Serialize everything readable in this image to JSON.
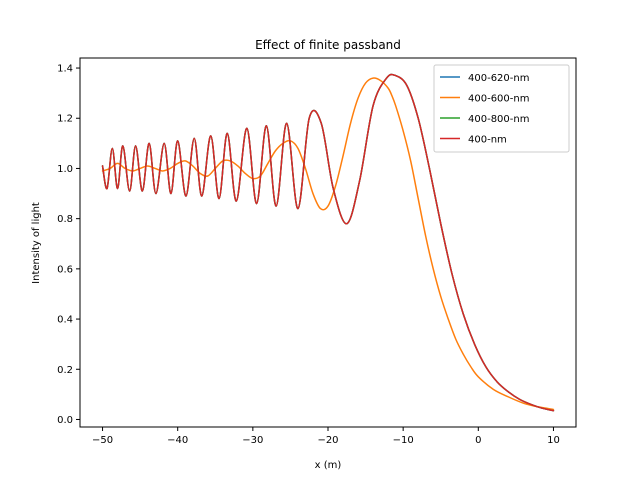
{
  "chart_data": {
    "type": "line",
    "title": "Effect of finite passband",
    "xlabel": "x (m)",
    "ylabel": "Intensity of light",
    "xlim": [
      -53,
      13
    ],
    "ylim": [
      -0.03,
      1.44
    ],
    "x_ticks": [
      -50,
      -40,
      -30,
      -20,
      -10,
      0,
      10
    ],
    "y_ticks": [
      0.0,
      0.2,
      0.4,
      0.6,
      0.8,
      1.0,
      1.2,
      1.4
    ],
    "x_tick_labels": [
      "−50",
      "−40",
      "−30",
      "−20",
      "−10",
      "0",
      "10"
    ],
    "y_tick_labels": [
      "0.0",
      "0.2",
      "0.4",
      "0.6",
      "0.8",
      "1.0",
      "1.2",
      "1.4"
    ],
    "grid": false,
    "legend_position": "upper right",
    "series": [
      {
        "name": "400-620-nm",
        "color": "#1f77b4",
        "x": [
          -50,
          -49.4,
          -48.7,
          -48.0,
          -47.3,
          -46.4,
          -45.6,
          -44.7,
          -43.8,
          -42.9,
          -41.8,
          -40.9,
          -40.0,
          -38.9,
          -37.8,
          -36.8,
          -35.6,
          -34.5,
          -33.4,
          -32.2,
          -30.8,
          -29.5,
          -28.2,
          -26.9,
          -25.5,
          -24.0,
          -22.5,
          -20.9,
          -19.3,
          -17.5,
          -15.8,
          -14.0,
          -12.2,
          -11.0,
          -9.5,
          -8.0,
          -6.5,
          -5.0,
          -3.5,
          -2.0,
          -0.5,
          1.0,
          2.5,
          4.0,
          5.5,
          7.0,
          8.5,
          10.0
        ],
        "y": [
          1.01,
          0.92,
          1.08,
          0.92,
          1.09,
          0.91,
          1.09,
          0.91,
          1.1,
          0.9,
          1.1,
          0.9,
          1.11,
          0.89,
          1.12,
          0.89,
          1.13,
          0.88,
          1.14,
          0.87,
          1.16,
          0.86,
          1.17,
          0.85,
          1.18,
          0.84,
          1.2,
          1.18,
          0.92,
          0.78,
          0.95,
          1.25,
          1.36,
          1.37,
          1.33,
          1.2,
          1.0,
          0.78,
          0.58,
          0.42,
          0.3,
          0.21,
          0.15,
          0.11,
          0.08,
          0.06,
          0.045,
          0.035
        ]
      },
      {
        "name": "400-600-nm",
        "color": "#ff7f0e",
        "x": [
          -50,
          -49.0,
          -48.0,
          -47.0,
          -46.0,
          -45.0,
          -44.0,
          -43.0,
          -42.0,
          -41.0,
          -40.0,
          -39.0,
          -38.0,
          -37.0,
          -36.0,
          -35.0,
          -34.0,
          -33.0,
          -32.0,
          -31.0,
          -30.0,
          -29.0,
          -28.0,
          -27.0,
          -26.0,
          -25.0,
          -24.0,
          -23.0,
          -22.0,
          -21.0,
          -20.0,
          -19.0,
          -18.0,
          -17.0,
          -16.0,
          -15.0,
          -14.0,
          -13.0,
          -12.0,
          -11.5,
          -11.0,
          -10.0,
          -9.0,
          -8.0,
          -7.0,
          -6.0,
          -5.0,
          -4.0,
          -3.0,
          -2.0,
          -1.0,
          0.0,
          2.0,
          4.0,
          6.0,
          8.0,
          10.0
        ],
        "y": [
          0.99,
          1.0,
          1.02,
          1.0,
          0.99,
          1.0,
          1.01,
          1.0,
          0.99,
          1.0,
          1.02,
          1.03,
          1.01,
          0.98,
          0.97,
          1.0,
          1.03,
          1.03,
          1.01,
          0.98,
          0.96,
          0.97,
          1.02,
          1.07,
          1.1,
          1.11,
          1.08,
          1.0,
          0.9,
          0.84,
          0.85,
          0.93,
          1.05,
          1.18,
          1.28,
          1.34,
          1.36,
          1.35,
          1.32,
          1.29,
          1.25,
          1.15,
          1.03,
          0.88,
          0.73,
          0.6,
          0.49,
          0.4,
          0.32,
          0.26,
          0.21,
          0.17,
          0.12,
          0.09,
          0.065,
          0.05,
          0.04
        ]
      },
      {
        "name": "400-800-nm",
        "color": "#2ca02c",
        "x": [
          -50,
          -49.4,
          -48.7,
          -48.0,
          -47.3,
          -46.4,
          -45.6,
          -44.7,
          -43.8,
          -42.9,
          -41.8,
          -40.9,
          -40.0,
          -38.9,
          -37.8,
          -36.8,
          -35.6,
          -34.5,
          -33.4,
          -32.2,
          -30.8,
          -29.5,
          -28.2,
          -26.9,
          -25.5,
          -24.0,
          -22.5,
          -20.9,
          -19.3,
          -17.5,
          -15.8,
          -14.0,
          -12.2,
          -11.0,
          -9.5,
          -8.0,
          -6.5,
          -5.0,
          -3.5,
          -2.0,
          -0.5,
          1.0,
          2.5,
          4.0,
          5.5,
          7.0,
          8.5,
          10.0
        ],
        "y": [
          1.01,
          0.92,
          1.08,
          0.92,
          1.09,
          0.91,
          1.09,
          0.91,
          1.1,
          0.9,
          1.1,
          0.9,
          1.11,
          0.89,
          1.12,
          0.89,
          1.13,
          0.88,
          1.14,
          0.87,
          1.16,
          0.86,
          1.17,
          0.85,
          1.18,
          0.84,
          1.2,
          1.18,
          0.92,
          0.78,
          0.95,
          1.25,
          1.36,
          1.37,
          1.33,
          1.2,
          1.0,
          0.78,
          0.58,
          0.42,
          0.3,
          0.21,
          0.15,
          0.11,
          0.08,
          0.06,
          0.045,
          0.035
        ]
      },
      {
        "name": "400-nm",
        "color": "#d62728",
        "x": [
          -50,
          -49.4,
          -48.7,
          -48.0,
          -47.3,
          -46.4,
          -45.6,
          -44.7,
          -43.8,
          -42.9,
          -41.8,
          -40.9,
          -40.0,
          -38.9,
          -37.8,
          -36.8,
          -35.6,
          -34.5,
          -33.4,
          -32.2,
          -30.8,
          -29.5,
          -28.2,
          -26.9,
          -25.5,
          -24.0,
          -22.5,
          -20.9,
          -19.3,
          -17.5,
          -15.8,
          -14.0,
          -12.2,
          -11.0,
          -9.5,
          -8.0,
          -6.5,
          -5.0,
          -3.5,
          -2.0,
          -0.5,
          1.0,
          2.5,
          4.0,
          5.5,
          7.0,
          8.5,
          10.0
        ],
        "y": [
          1.01,
          0.92,
          1.08,
          0.92,
          1.09,
          0.91,
          1.09,
          0.91,
          1.1,
          0.9,
          1.1,
          0.9,
          1.11,
          0.89,
          1.12,
          0.89,
          1.13,
          0.88,
          1.14,
          0.87,
          1.16,
          0.86,
          1.17,
          0.85,
          1.18,
          0.84,
          1.2,
          1.18,
          0.92,
          0.78,
          0.95,
          1.25,
          1.36,
          1.37,
          1.33,
          1.2,
          1.0,
          0.78,
          0.58,
          0.42,
          0.3,
          0.21,
          0.15,
          0.11,
          0.08,
          0.06,
          0.045,
          0.035
        ]
      }
    ]
  }
}
